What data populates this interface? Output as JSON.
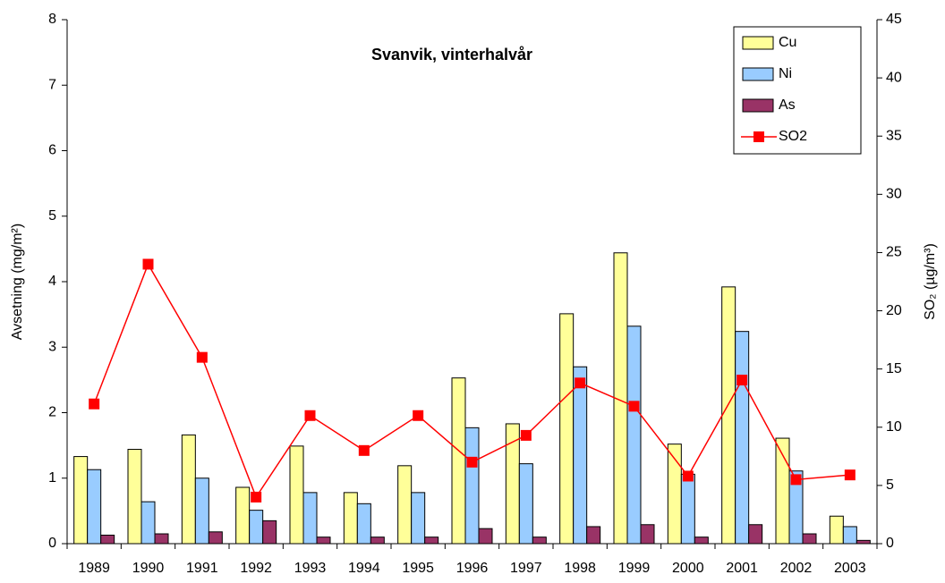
{
  "chart_data": {
    "type": "bar",
    "title": "Svanvik, vinterhalvår",
    "ylabel": "Avsetning (mg/m²)",
    "y2label": "SO₂ (µg/m³)",
    "categories": [
      "1989",
      "1990",
      "1991",
      "1992",
      "1993",
      "1994",
      "1995",
      "1996",
      "1997",
      "1998",
      "1999",
      "2000",
      "2001",
      "2002",
      "2003"
    ],
    "series": [
      {
        "name": "Cu",
        "color": "#ffff99",
        "values": [
          1.33,
          1.44,
          1.66,
          0.86,
          1.49,
          0.78,
          1.19,
          2.53,
          1.83,
          3.51,
          4.44,
          1.52,
          3.92,
          1.61,
          0.42
        ]
      },
      {
        "name": "Ni",
        "color": "#99ccff",
        "values": [
          1.13,
          0.64,
          1.0,
          0.51,
          0.78,
          0.61,
          0.78,
          1.77,
          1.22,
          2.7,
          3.32,
          1.06,
          3.24,
          1.11,
          0.26
        ]
      },
      {
        "name": "As",
        "color": "#993366",
        "values": [
          0.13,
          0.15,
          0.18,
          0.35,
          0.1,
          0.1,
          0.1,
          0.23,
          0.1,
          0.26,
          0.29,
          0.1,
          0.29,
          0.15,
          0.05
        ]
      },
      {
        "name": "SO2",
        "color": "#ff0000",
        "type": "line",
        "axis": "y2",
        "values": [
          12,
          24,
          16,
          4,
          11,
          8,
          11,
          7,
          9.3,
          13.8,
          11.8,
          5.8,
          14.05,
          5.5,
          5.9
        ]
      }
    ],
    "ylim": [
      0,
      8
    ],
    "yticks": [
      0,
      1,
      2,
      3,
      4,
      5,
      6,
      7,
      8
    ],
    "y2lim": [
      0,
      45
    ],
    "y2ticks": [
      0,
      5,
      10,
      15,
      20,
      25,
      30,
      35,
      40,
      45
    ],
    "legend": "upper right"
  }
}
